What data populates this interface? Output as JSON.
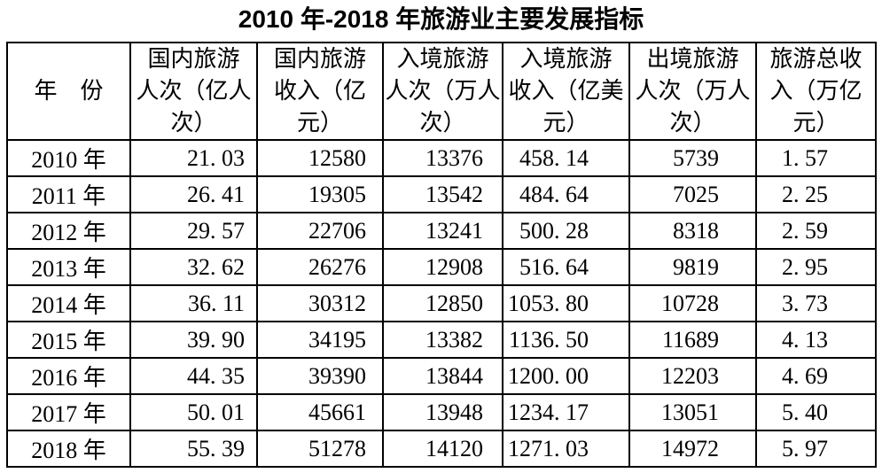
{
  "page_title": "2010 年-2018 年旅游业主要发展指标",
  "chart_data": {
    "type": "table",
    "title": "2010 年-2018 年旅游业主要发展指标",
    "columns": [
      "年份",
      "国内旅游人次（亿人次）",
      "国内旅游收入（亿元）",
      "入境旅游人次（万人次）",
      "入境旅游收入（亿美元）",
      "出境旅游人次（万人次）",
      "旅游总收入（万亿元）"
    ],
    "rows": [
      {
        "year": "2010年",
        "domestic_trips_100m": 21.03,
        "domestic_revenue_100m_yuan": 12580,
        "inbound_trips_10k": 13376,
        "inbound_revenue_100m_usd": 458.14,
        "outbound_trips_10k": 5739,
        "total_revenue_trillion_yuan": 1.57
      },
      {
        "year": "2011年",
        "domestic_trips_100m": 26.41,
        "domestic_revenue_100m_yuan": 19305,
        "inbound_trips_10k": 13542,
        "inbound_revenue_100m_usd": 484.64,
        "outbound_trips_10k": 7025,
        "total_revenue_trillion_yuan": 2.25
      },
      {
        "year": "2012年",
        "domestic_trips_100m": 29.57,
        "domestic_revenue_100m_yuan": 22706,
        "inbound_trips_10k": 13241,
        "inbound_revenue_100m_usd": 500.28,
        "outbound_trips_10k": 8318,
        "total_revenue_trillion_yuan": 2.59
      },
      {
        "year": "2013年",
        "domestic_trips_100m": 32.62,
        "domestic_revenue_100m_yuan": 26276,
        "inbound_trips_10k": 12908,
        "inbound_revenue_100m_usd": 516.64,
        "outbound_trips_10k": 9819,
        "total_revenue_trillion_yuan": 2.95
      },
      {
        "year": "2014年",
        "domestic_trips_100m": 36.11,
        "domestic_revenue_100m_yuan": 30312,
        "inbound_trips_10k": 12850,
        "inbound_revenue_100m_usd": 1053.8,
        "outbound_trips_10k": 10728,
        "total_revenue_trillion_yuan": 3.73
      },
      {
        "year": "2015年",
        "domestic_trips_100m": 39.9,
        "domestic_revenue_100m_yuan": 34195,
        "inbound_trips_10k": 13382,
        "inbound_revenue_100m_usd": 1136.5,
        "outbound_trips_10k": 11689,
        "total_revenue_trillion_yuan": 4.13
      },
      {
        "year": "2016年",
        "domestic_trips_100m": 44.35,
        "domestic_revenue_100m_yuan": 39390,
        "inbound_trips_10k": 13844,
        "inbound_revenue_100m_usd": 1200.0,
        "outbound_trips_10k": 12203,
        "total_revenue_trillion_yuan": 4.69
      },
      {
        "year": "2017年",
        "domestic_trips_100m": 50.01,
        "domestic_revenue_100m_yuan": 45661,
        "inbound_trips_10k": 13948,
        "inbound_revenue_100m_usd": 1234.17,
        "outbound_trips_10k": 13051,
        "total_revenue_trillion_yuan": 5.4
      },
      {
        "year": "2018年",
        "domestic_trips_100m": 55.39,
        "domestic_revenue_100m_yuan": 51278,
        "inbound_trips_10k": 14120,
        "inbound_revenue_100m_usd": 1271.03,
        "outbound_trips_10k": 14972,
        "total_revenue_trillion_yuan": 5.97
      }
    ]
  },
  "display": {
    "header_lines": [
      "年　份",
      "国内旅游\n人次（亿人\n次）",
      "国内旅游\n收入（亿\n元）",
      "入境旅游\n人次（万人\n次）",
      "入境旅游\n收入（亿美\n元）",
      "出境旅游\n人次（万人\n次）",
      "旅游总收\n入（万亿\n元）"
    ],
    "rows": [
      [
        "2010 年",
        "21. 03",
        "12580",
        "13376",
        "458. 14",
        "5739",
        "1. 57"
      ],
      [
        "2011 年",
        "26. 41",
        "19305",
        "13542",
        "484. 64",
        "7025",
        "2. 25"
      ],
      [
        "2012 年",
        "29. 57",
        "22706",
        "13241",
        "500. 28",
        "8318",
        "2. 59"
      ],
      [
        "2013 年",
        "32. 62",
        "26276",
        "12908",
        "516. 64",
        "9819",
        "2. 95"
      ],
      [
        "2014 年",
        "36. 11",
        "30312",
        "12850",
        "1053. 80",
        "10728",
        "3. 73"
      ],
      [
        "2015 年",
        "39. 90",
        "34195",
        "13382",
        "1136. 50",
        "11689",
        "4. 13"
      ],
      [
        "2016 年",
        "44. 35",
        "39390",
        "13844",
        "1200. 00",
        "12203",
        "4. 69"
      ],
      [
        "2017 年",
        "50. 01",
        "45661",
        "13948",
        "1234. 17",
        "13051",
        "5. 40"
      ],
      [
        "2018 年",
        "55. 39",
        "51278",
        "14120",
        "1271. 03",
        "14972",
        "5. 97"
      ]
    ]
  }
}
